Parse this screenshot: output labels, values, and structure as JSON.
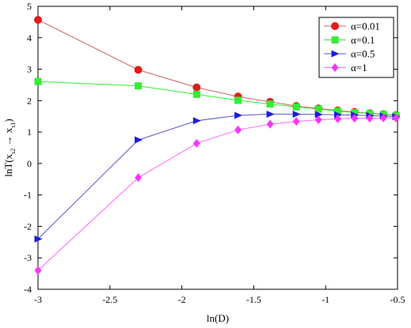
{
  "chart_data": {
    "type": "line",
    "title": "",
    "xlabel": "ln(D)",
    "ylabel": "lnT(x_{s2}→x_{s1})",
    "ylabel_parts": {
      "base": "lnT(x",
      "sub1": "s2",
      "arrow": " → x",
      "sub2": "s1",
      "close": ")"
    },
    "xlim": [
      -3,
      -0.5
    ],
    "ylim": [
      -4,
      5
    ],
    "xticks": [
      -3,
      -2.5,
      -2,
      -1.5,
      -1,
      -0.5
    ],
    "xtick_labels": [
      "-3",
      "-2.5",
      "-2",
      "-1.5",
      "-1",
      "-0.5"
    ],
    "yticks": [
      -4,
      -3,
      -2,
      -1,
      0,
      1,
      2,
      3,
      4,
      5
    ],
    "ytick_labels": [
      "-4",
      "-3",
      "-2",
      "-1",
      "0",
      "1",
      "2",
      "3",
      "4",
      "5"
    ],
    "grid": false,
    "legend_position": "top-right",
    "x": [
      -3.0,
      -2.303,
      -1.897,
      -1.609,
      -1.386,
      -1.204,
      -1.05,
      -0.916,
      -0.799,
      -0.693,
      -0.598,
      -0.511
    ],
    "series": [
      {
        "name": "α=0.01",
        "color": "#e41a1c",
        "line_color": "#c86464",
        "marker": "circle",
        "values": [
          4.57,
          2.98,
          2.42,
          2.13,
          1.96,
          1.83,
          1.75,
          1.69,
          1.64,
          1.6,
          1.57,
          1.54
        ]
      },
      {
        "name": "α=0.1",
        "color": "#33ee33",
        "line_color": "#33ee33",
        "marker": "square",
        "values": [
          2.61,
          2.47,
          2.2,
          2.01,
          1.89,
          1.8,
          1.73,
          1.67,
          1.62,
          1.59,
          1.56,
          1.53
        ]
      },
      {
        "name": "α=0.5",
        "color": "#1a1ae6",
        "line_color": "#5a5ac8",
        "marker": "triangle-right",
        "values": [
          -2.4,
          0.75,
          1.36,
          1.53,
          1.57,
          1.57,
          1.56,
          1.55,
          1.54,
          1.52,
          1.51,
          1.49
        ]
      },
      {
        "name": "α=1",
        "color": "#ff33ff",
        "line_color": "#ff66ff",
        "marker": "diamond",
        "values": [
          -3.4,
          -0.45,
          0.64,
          1.07,
          1.25,
          1.34,
          1.39,
          1.42,
          1.44,
          1.44,
          1.45,
          1.45
        ]
      }
    ]
  }
}
